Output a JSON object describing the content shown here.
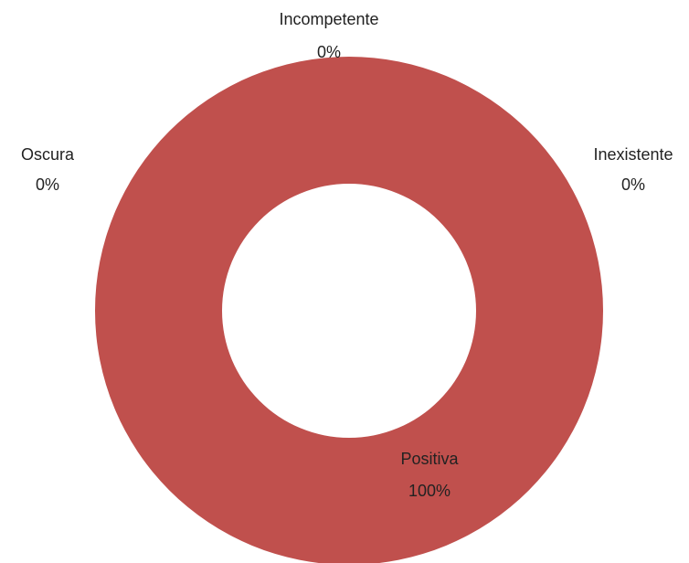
{
  "chart_data": {
    "type": "donut",
    "categories": [
      "Incompetente",
      "Inexistente",
      "Positiva",
      "Oscura"
    ],
    "values": [
      0,
      0,
      100,
      0
    ],
    "value_labels": [
      "0%",
      "0%",
      "100%",
      "0%"
    ],
    "color": "#c0504d"
  }
}
